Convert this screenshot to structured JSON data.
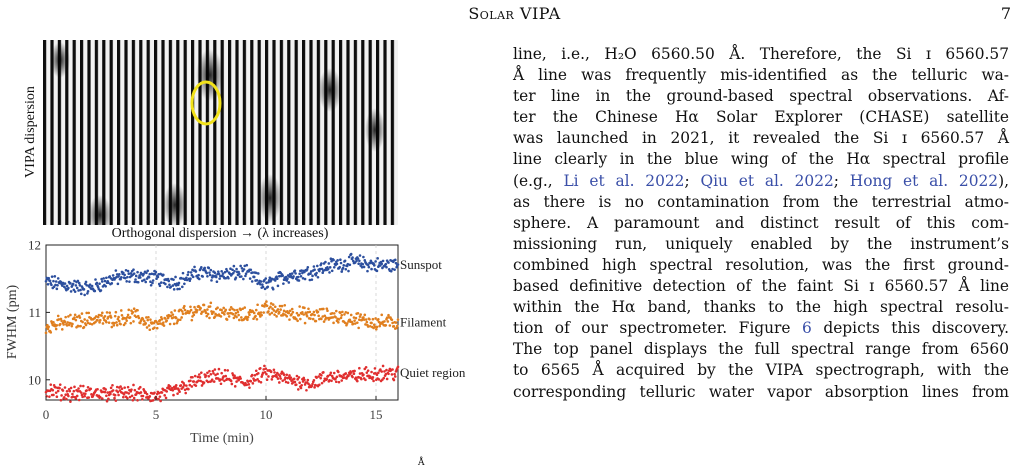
{
  "header": {
    "title": "Solar VIPA",
    "page_number": "7"
  },
  "figure": {
    "top_panel": {
      "ylabel": "VIPA dispersion",
      "xlabel": "Orthogonal dispersion → (λ increases)"
    },
    "chart_data": {
      "type": "scatter",
      "xlabel": "Time (min)",
      "ylabel": "FWHM (pm)",
      "xlim": [
        0,
        16
      ],
      "ylim": [
        9.7,
        12
      ],
      "xticks": [
        "0",
        "5",
        "10",
        "15"
      ],
      "yticks": [
        "10",
        "11",
        "12"
      ],
      "series": [
        {
          "name": "Sunspot",
          "color": "#2c4f9e",
          "x": [
            0,
            1,
            2,
            3,
            4,
            5,
            6,
            7,
            8,
            9,
            10,
            11,
            12,
            13,
            14,
            15,
            16
          ],
          "y": [
            11.45,
            11.4,
            11.35,
            11.5,
            11.55,
            11.5,
            11.45,
            11.6,
            11.55,
            11.6,
            11.4,
            11.55,
            11.6,
            11.7,
            11.75,
            11.7,
            11.7
          ]
        },
        {
          "name": "Filament",
          "color": "#e07f1f",
          "x": [
            0,
            1,
            2,
            3,
            4,
            5,
            6,
            7,
            8,
            9,
            10,
            11,
            12,
            13,
            14,
            15,
            16
          ],
          "y": [
            10.8,
            10.85,
            10.9,
            10.9,
            10.95,
            10.8,
            10.95,
            11.05,
            11.0,
            10.95,
            11.05,
            11.0,
            10.95,
            10.95,
            10.9,
            10.85,
            10.85
          ]
        },
        {
          "name": "Quiet region",
          "color": "#e02f2f",
          "x": [
            0,
            1,
            2,
            3,
            4,
            5,
            6,
            7,
            8,
            9,
            10,
            11,
            12,
            13,
            14,
            15,
            16
          ],
          "y": [
            9.85,
            9.8,
            9.8,
            9.8,
            9.8,
            9.75,
            9.85,
            10.0,
            10.05,
            9.95,
            10.1,
            10.0,
            9.95,
            10.05,
            10.05,
            10.1,
            10.1
          ]
        }
      ]
    }
  },
  "body_lines": [
    "line, i.e., H₂O 6560.50 Å. Therefore, the Si ɪ 6560.57",
    "Å line was frequently mis-identified as the telluric wa-",
    "ter line in the ground-based spectral observations. Af-",
    "ter the Chinese Hα Solar Explorer (CHASE) satellite",
    "was launched in 2021, it revealed the Si ɪ 6560.57 Å",
    "line clearly in the blue wing of the Hα spectral profile",
    {
      "pre": "(e.g., ",
      "c1": "Li et al. 2022",
      "s1": "; ",
      "c2": "Qiu et al. 2022",
      "s2": "; ",
      "c3": "Hong et al. 2022",
      "post": "),"
    },
    "as there is no contamination from the terrestrial atmo-",
    "sphere. A paramount and distinct result of this com-",
    "missioning run, uniquely enabled by the instrument’s",
    "combined high spectral resolution, was the first ground-",
    "based definitive detection of the faint Si ɪ 6560.57 Å line",
    "within the Hα band, thanks to the high spectral resolu-",
    {
      "pre": "tion of our spectrometer. Figure ",
      "c1": "6",
      "post": " depicts this discovery."
    },
    "The top panel displays the full spectral range from 6560",
    "to 6565 Å acquired by the VIPA spectrograph, with the",
    "corresponding telluric water vapor absorption lines from"
  ],
  "caption_fragment": "Å"
}
